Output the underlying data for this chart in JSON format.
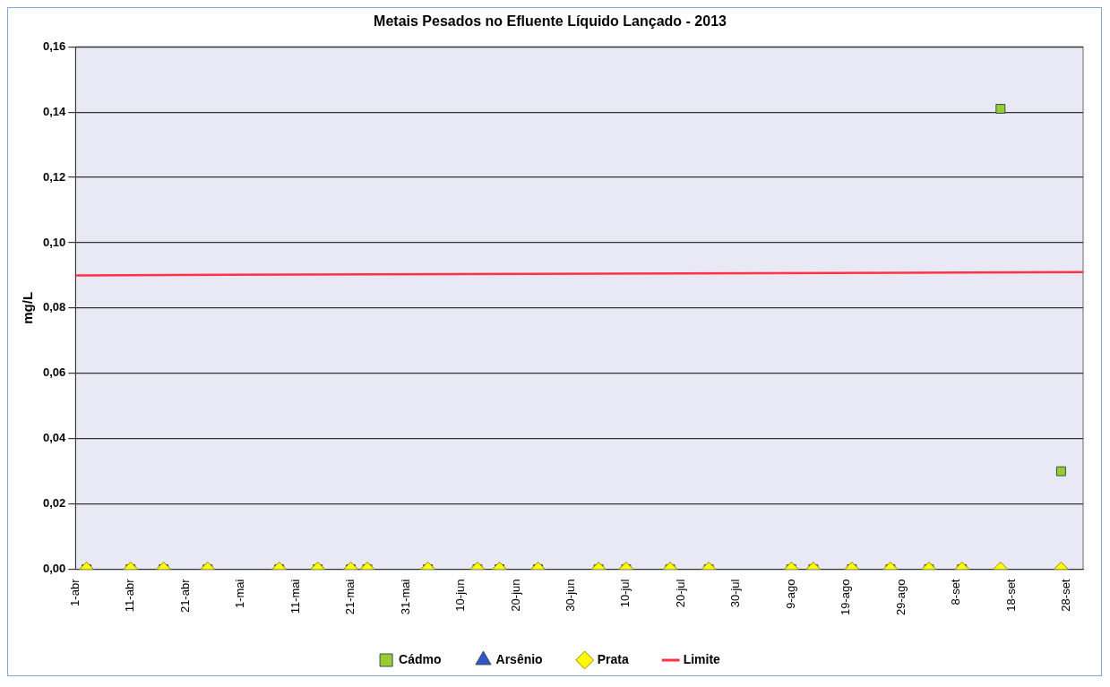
{
  "chart_data": {
    "type": "scatter",
    "title": "Metais Pesados no Efluente Líquido Lançado - 2013",
    "ylabel": "mg/L",
    "x": [
      "2013-04-03",
      "2013-04-11",
      "2013-04-17",
      "2013-04-25",
      "2013-05-08",
      "2013-05-15",
      "2013-05-21",
      "2013-05-24",
      "2013-06-04",
      "2013-06-13",
      "2013-06-17",
      "2013-06-24",
      "2013-07-05",
      "2013-07-10",
      "2013-07-18",
      "2013-07-25",
      "2013-08-09",
      "2013-08-13",
      "2013-08-20",
      "2013-08-27",
      "2013-09-03",
      "2013-09-09",
      "2013-09-16",
      "2013-09-27"
    ],
    "series": [
      {
        "name": "Cádmo",
        "color": "#99cc33",
        "marker": "square",
        "values": [
          0,
          0,
          0,
          0,
          0,
          0,
          0,
          0,
          0,
          0,
          0,
          0,
          0,
          0,
          0,
          0,
          0,
          0,
          0,
          0,
          0,
          0,
          0.141,
          0.03
        ]
      },
      {
        "name": "Arsênio",
        "color": "#3355cc",
        "marker": "triangle",
        "values": [
          0,
          0,
          0,
          0,
          0,
          0,
          0,
          0,
          0,
          0,
          0,
          0,
          0,
          0,
          0,
          0,
          0,
          0,
          0,
          0,
          0,
          0,
          0,
          0
        ]
      },
      {
        "name": "Prata",
        "color": "#ffff00",
        "marker": "diamond",
        "values": [
          0,
          0,
          0,
          0,
          0,
          0,
          0,
          0,
          0,
          0,
          0,
          0,
          0,
          0,
          0,
          0,
          0,
          0,
          0,
          0,
          0,
          0,
          0,
          0
        ]
      },
      {
        "name": "Limite",
        "color": "#ff3344",
        "type": "line",
        "marker": "none",
        "x": [
          "2013-04-01",
          "2013-10-01"
        ],
        "values": [
          0.09,
          0.091
        ]
      }
    ],
    "xlim": [
      "2013-04-01",
      "2013-10-01"
    ],
    "xticks": [
      {
        "value": "2013-04-01",
        "label": "1-abr"
      },
      {
        "value": "2013-04-11",
        "label": "11-abr"
      },
      {
        "value": "2013-04-21",
        "label": "21-abr"
      },
      {
        "value": "2013-05-01",
        "label": "1-mai"
      },
      {
        "value": "2013-05-11",
        "label": "11-mai"
      },
      {
        "value": "2013-05-21",
        "label": "21-mai"
      },
      {
        "value": "2013-05-31",
        "label": "31-mai"
      },
      {
        "value": "2013-06-10",
        "label": "10-jun"
      },
      {
        "value": "2013-06-20",
        "label": "20-jun"
      },
      {
        "value": "2013-06-30",
        "label": "30-jun"
      },
      {
        "value": "2013-07-10",
        "label": "10-jul"
      },
      {
        "value": "2013-07-20",
        "label": "20-jul"
      },
      {
        "value": "2013-07-30",
        "label": "30-jul"
      },
      {
        "value": "2013-08-09",
        "label": "9-ago"
      },
      {
        "value": "2013-08-19",
        "label": "19-ago"
      },
      {
        "value": "2013-08-29",
        "label": "29-ago"
      },
      {
        "value": "2013-09-08",
        "label": "8-set"
      },
      {
        "value": "2013-09-18",
        "label": "18-set"
      },
      {
        "value": "2013-09-28",
        "label": "28-set"
      }
    ],
    "ylim": [
      0,
      0.16
    ],
    "yticks": [
      {
        "value": 0,
        "label": "0,00"
      },
      {
        "value": 0.02,
        "label": "0,02"
      },
      {
        "value": 0.04,
        "label": "0,04"
      },
      {
        "value": 0.06,
        "label": "0,06"
      },
      {
        "value": 0.08,
        "label": "0,08"
      },
      {
        "value": 0.1,
        "label": "0,10"
      },
      {
        "value": 0.12,
        "label": "0,12"
      },
      {
        "value": 0.14,
        "label": "0,14"
      },
      {
        "value": 0.16,
        "label": "0,16"
      }
    ],
    "grid": "y",
    "legend": "bottom"
  }
}
